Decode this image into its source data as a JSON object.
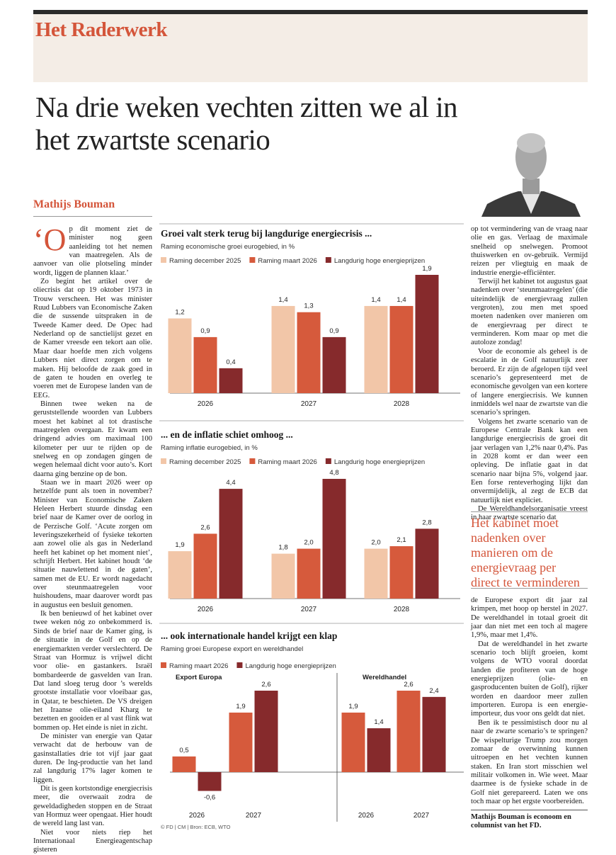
{
  "header": {
    "section": "Het Raderwerk"
  },
  "headline": "Na drie weken vechten zitten we al in het zwartste scenario",
  "author": "Mathijs Bouman",
  "column_left": [
    "‘Op dit moment ziet de minister nog geen aanleiding tot het nemen van maatregelen. Als de aanvoer van olie plotseling minder wordt, liggen de plannen klaar.’",
    "Zo begint het artikel over de oliecrisis dat op 19 oktober 1973 in Trouw verscheen. Het was minister Ruud Lubbers van Economische Zaken die de sussende uitspraken in de Tweede Kamer deed. De Opec had Nederland op de sanctielijst gezet en de Kamer vreesde een tekort aan olie. Maar daar hoefde men zich volgens Lubbers niet direct zorgen om te maken. Hij beloofde de zaak goed in de gaten te houden en overleg te voeren met de Europese landen van de EEG.",
    "Binnen twee weken na de geruststellende woorden van Lubbers moest het kabinet al tot drastische maatregelen overgaan. Er kwam een dringend advies om maximaal 100 kilometer per uur te rijden op de snelweg en op zondagen gingen de wegen helemaal dicht voor auto’s. Kort daarna ging benzine op de bon.",
    "Staan we in maart 2026 weer op hetzelfde punt als toen in november? Minister van Economische Zaken Heleen Herbert stuurde dinsdag een brief naar de Kamer over de oorlog in de Perzische Golf. ‘Acute zorgen om leveringszekerheid of fysieke tekorten aan zowel olie als gas in Nederland heeft het kabinet op het moment niet’, schrijft Herbert. Het kabinet houdt ‘de situatie nauwlettend in de gaten’, samen met de EU. Er wordt nagedacht over steunmaatregelen voor huishoudens, maar daarover wordt pas in augustus een besluit genomen.",
    "Ik ben benieuwd of het kabinet over twee weken nóg zo onbekommerd is. Sinds de brief naar de Kamer ging, is de situatie in de Golf en op de energiemarkten verder verslechterd. De Straat van Hormuz is vrijwel dicht voor olie- en gastankers. Israël bombardeerde de gasvelden van Iran. Dat land sloeg terug door ’s werelds grootste installatie voor vloeibaar gas, in Qatar, te beschieten. De VS dreigen het Iraanse olie-eiland Kharg te bezetten en gooiden er al vast flink wat bommen op. Het einde is niet in zicht.",
    "De minister van energie van Qatar verwacht dat de herbouw van de gasinstallaties drie tot vijf jaar gaat duren. De lng-productie van het land zal langdurig 17% lager komen te liggen.",
    "Dit is geen kortstondige energiecrisis meer, die overwaait zodra de geweldadigheden stoppen en de Straat van Hormuz weer opengaat. Hier houdt de wereld lang last van.",
    "Niet voor niets riep het Internationaal Energieagentschap gisteren"
  ],
  "column_right_top": [
    "op tot vermindering van de vraag naar olie en gas. Verlaag de maximale snelheid op snelwegen. Promoot thuiswerken en ov-gebruik. Vermijd reizen per vliegtuig en maak de industrie energie-efficiënter.",
    "Terwijl het kabinet tot augustus gaat nadenken over ‘steunmaatregelen’ (die uiteindelijk de energievraag zullen vergroten), zou men met spoed moeten nadenken over manieren om de energievraag per direct te verminderen. Kom maar op met die autoloze zondag!",
    "Voor de economie als geheel is de escalatie in de Golf natuurlijk zeer beroerd. Er zijn de afgelopen tijd veel scenario’s gepresenteerd met de economische gevolgen van een kortere of langere energiecrisis. We kunnen inmiddels wel naar de zwartste van die scenario’s springen.",
    "Volgens het zwarte scenario van de Europese Centrale Bank kan een langdurige energiecrisis de groei dit jaar verlagen van 1,2% naar 0,4%. Pas in 2028 komt er dan weer een opleving. De inflatie gaat in dat scenario naar bijna 5%, volgend jaar. Een forse renteverhoging lijkt dan onvermijdelijk, al zegt de ECB dat natuurlijk niet expliciet.",
    "De Wereldhandelsorganisatie vreest in haar zwartste scenario dat"
  ],
  "pull_quote": "Het kabinet moet nadenken over manieren om de energievraag per direct te verminderen",
  "column_right_bottom": [
    "de Europese export dit jaar zal krimpen, met hoop op herstel in 2027. De wereldhandel in totaal groeit dit jaar dan niet met een toch al magere 1,9%, maar met 1,4%.",
    "Dat de wereldhandel in het zwarte scenario toch blijft groeien, komt volgens de WTO vooral doordat landen die profiteren van de hoge energieprijzen (olie- en gasproducenten buiten de Golf), rijker worden en daardoor meer zullen importeren. Europa is een energie-importeur, dus voor ons geldt dat niet.",
    "Ben ik te pessimistisch door nu al naar de zwarte scenario’s te springen? De wispelturige Trump zou morgen zomaar de overwinning kunnen uitroepen en het vechten kunnen staken. En Iran stort misschien wel militair volkomen in. Wie weet. Maar daarmee is de fysieke schade in de Golf niet gerepareerd. Laten we ons toch maar op het ergste voorbereiden."
  ],
  "bio": "Mathijs Bouman is econoom en columnist van het FD.",
  "source": "© FD | CM | Bron: ECB, WTO",
  "chart_data": [
    {
      "type": "bar",
      "title": "Groei valt sterk terug bij langdurige energiecrisis ...",
      "subtitle": "Raming economische groei eurogebied, in %",
      "categories": [
        "2026",
        "2027",
        "2028"
      ],
      "series": [
        {
          "name": "Raming december 2025",
          "color": "#f2c6a8",
          "values": [
            1.2,
            1.4,
            1.4
          ],
          "value_labels": [
            "1,2",
            "1,4",
            "1,4"
          ]
        },
        {
          "name": "Raming maart 2026",
          "color": "#d65a3c",
          "values": [
            0.9,
            1.3,
            1.4
          ],
          "value_labels": [
            "0,9",
            "1,3",
            "1,4"
          ]
        },
        {
          "name": "Langdurig hoge energieprijzen",
          "color": "#862a2c",
          "values": [
            0.4,
            0.9,
            1.9
          ],
          "value_labels": [
            "0,4",
            "0,9",
            "1,9"
          ]
        }
      ]
    },
    {
      "type": "bar",
      "title": "... en de inflatie schiet omhoog ...",
      "subtitle": "Raming inflatie eurogebied, in %",
      "categories": [
        "2026",
        "2027",
        "2028"
      ],
      "series": [
        {
          "name": "Raming december 2025",
          "color": "#f2c6a8",
          "values": [
            1.9,
            1.8,
            2.0
          ],
          "value_labels": [
            "1,9",
            "1,8",
            "2,0"
          ]
        },
        {
          "name": "Raming maart 2026",
          "color": "#d65a3c",
          "values": [
            2.6,
            2.0,
            2.1
          ],
          "value_labels": [
            "2,6",
            "2,0",
            "2,1"
          ]
        },
        {
          "name": "Langdurig hoge energieprijzen",
          "color": "#862a2c",
          "values": [
            4.4,
            4.8,
            2.8
          ],
          "value_labels": [
            "4,4",
            "4,8",
            "2,8"
          ]
        }
      ]
    },
    {
      "type": "bar",
      "title": "... ook internationale handel krijgt een klap",
      "subtitle": "Raming groei Europese export en wereldhandel",
      "legend": [
        "Raming maart 2026",
        "Langdurig hoge energieprijzen"
      ],
      "colors": [
        "#d65a3c",
        "#862a2c"
      ],
      "panels": [
        {
          "title": "Export Europa",
          "categories": [
            "2026",
            "2027"
          ],
          "series": [
            {
              "values": [
                0.5,
                1.9
              ],
              "value_labels": [
                "0,5",
                "1,9"
              ]
            },
            {
              "values": [
                -0.6,
                2.6
              ],
              "value_labels": [
                "-0,6",
                "2,6"
              ]
            }
          ]
        },
        {
          "title": "Wereldhandel",
          "categories": [
            "2026",
            "2027"
          ],
          "series": [
            {
              "values": [
                1.9,
                2.6
              ],
              "value_labels": [
                "1,9",
                "2,6"
              ]
            },
            {
              "values": [
                1.4,
                2.4
              ],
              "value_labels": [
                "1,4",
                "2,4"
              ]
            }
          ]
        }
      ]
    }
  ]
}
